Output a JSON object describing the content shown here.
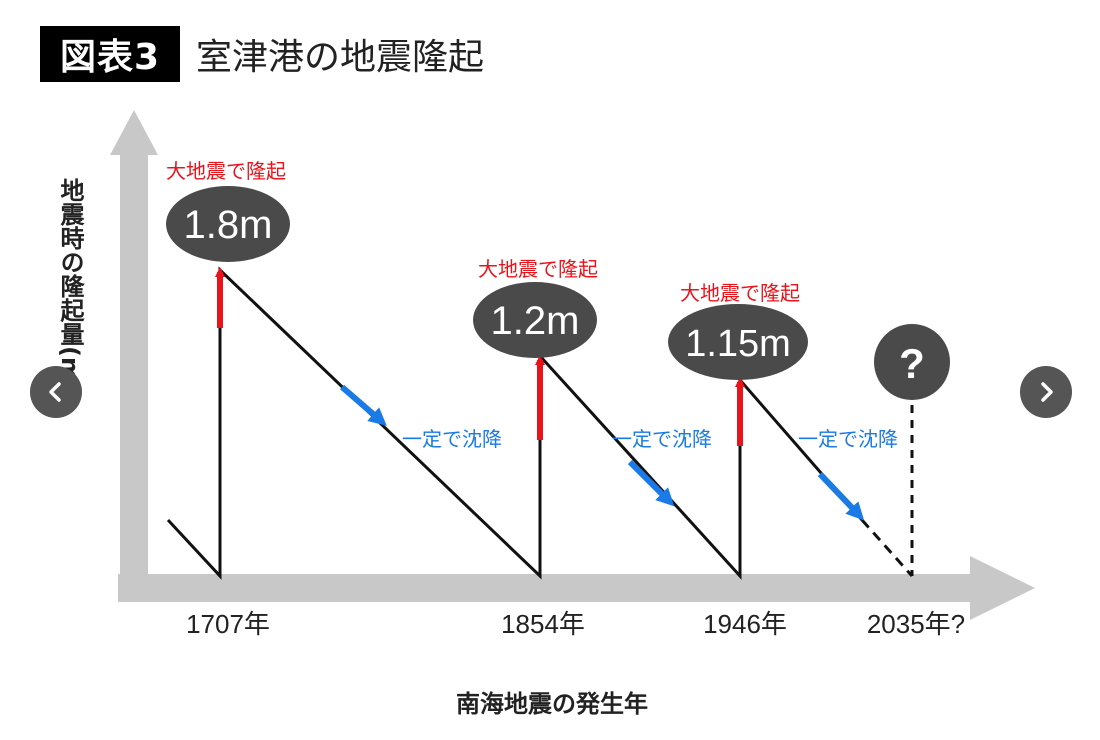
{
  "title": {
    "badge": "図表3",
    "text": "室津港の地震隆起"
  },
  "chart_data": {
    "type": "line",
    "ylabel": "地震時の隆起量(m)",
    "xlabel": "南海地震の発生年",
    "x_ticks": [
      "1707年",
      "1854年",
      "1946年",
      "2035年?"
    ],
    "events": [
      {
        "year": "1707年",
        "uplift_m": 1.8,
        "uplift_label": "1.8m",
        "annotation": "大地震で隆起"
      },
      {
        "year": "1854年",
        "uplift_m": 1.2,
        "uplift_label": "1.2m",
        "annotation": "大地震で隆起"
      },
      {
        "year": "1946年",
        "uplift_m": 1.15,
        "uplift_label": "1.15m",
        "annotation": "大地震で隆起"
      },
      {
        "year": "2035年?",
        "uplift_m": null,
        "uplift_label": "?",
        "annotation": ""
      }
    ],
    "subsidence_label": "一定で沈降",
    "colors": {
      "uplift_arrow": "#e8141c",
      "subsidence_arrow": "#1a7ae6",
      "line": "#111111",
      "axis": "#c8c8c8",
      "bubble": "#4a4a4a"
    }
  },
  "nav": {
    "prev_icon": "chevron-left-icon",
    "next_icon": "chevron-right-icon"
  }
}
